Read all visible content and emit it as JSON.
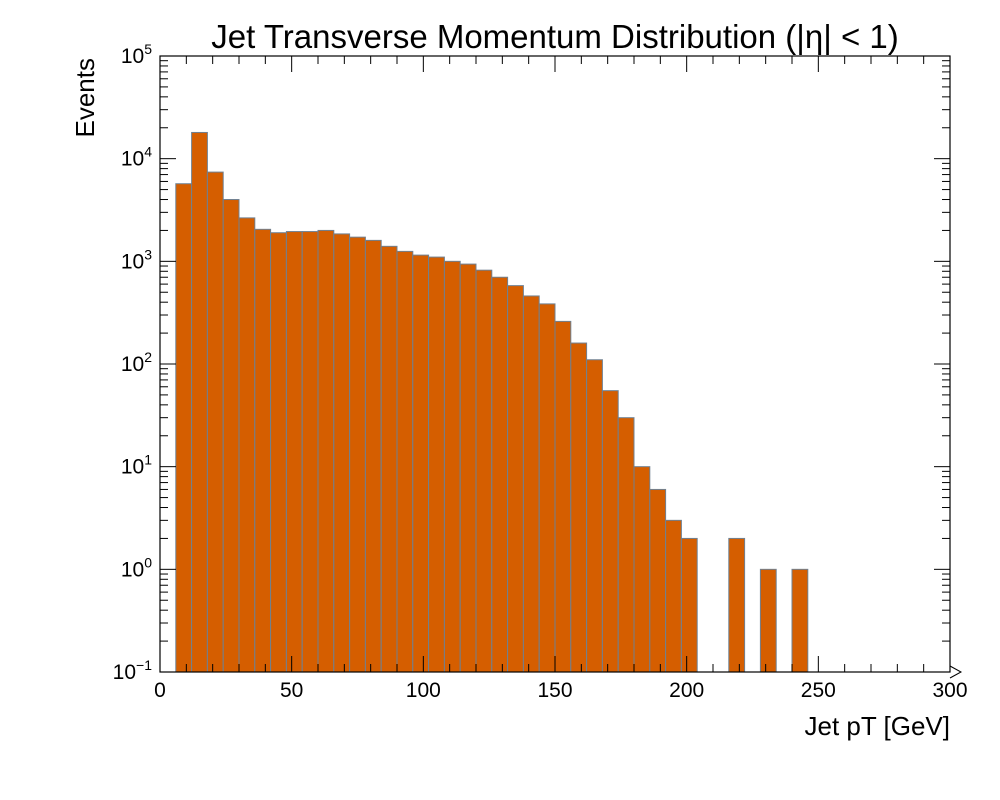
{
  "chart_data": {
    "type": "bar",
    "title": "Jet Transverse Momentum Distribution (|η| < 1)",
    "xlabel": "Jet pT [GeV]",
    "ylabel": "Events",
    "xlim": [
      0,
      300
    ],
    "ylim": [
      0.1,
      100000
    ],
    "yscale": "log",
    "grid": false,
    "legend": "none",
    "bar_color": "#d55e00",
    "edge_color": "#708090",
    "bin_width": 6,
    "x_ticks": [
      "0",
      "50",
      "100",
      "150",
      "200",
      "250",
      "300"
    ],
    "y_ticks": [
      {
        "base": "10",
        "exp": "−1"
      },
      {
        "base": "10",
        "exp": "0"
      },
      {
        "base": "10",
        "exp": "1"
      },
      {
        "base": "10",
        "exp": "2"
      },
      {
        "base": "10",
        "exp": "3"
      },
      {
        "base": "10",
        "exp": "4"
      },
      {
        "base": "10",
        "exp": "5"
      }
    ],
    "bin_lefts": [
      6,
      12,
      18,
      24,
      30,
      36,
      42,
      48,
      54,
      60,
      66,
      72,
      78,
      84,
      90,
      96,
      102,
      108,
      114,
      120,
      126,
      132,
      138,
      144,
      150,
      156,
      162,
      168,
      174,
      180,
      186,
      192,
      198,
      204,
      210,
      216,
      222,
      228,
      234,
      240,
      246
    ],
    "values": [
      5700,
      18000,
      7400,
      4000,
      2650,
      2050,
      1900,
      1950,
      1950,
      2000,
      1850,
      1720,
      1600,
      1400,
      1250,
      1150,
      1100,
      1000,
      940,
      820,
      700,
      580,
      460,
      385,
      260,
      160,
      110,
      55,
      30,
      10,
      6,
      3,
      2,
      0,
      0,
      2,
      0,
      1,
      0,
      1,
      0
    ]
  }
}
